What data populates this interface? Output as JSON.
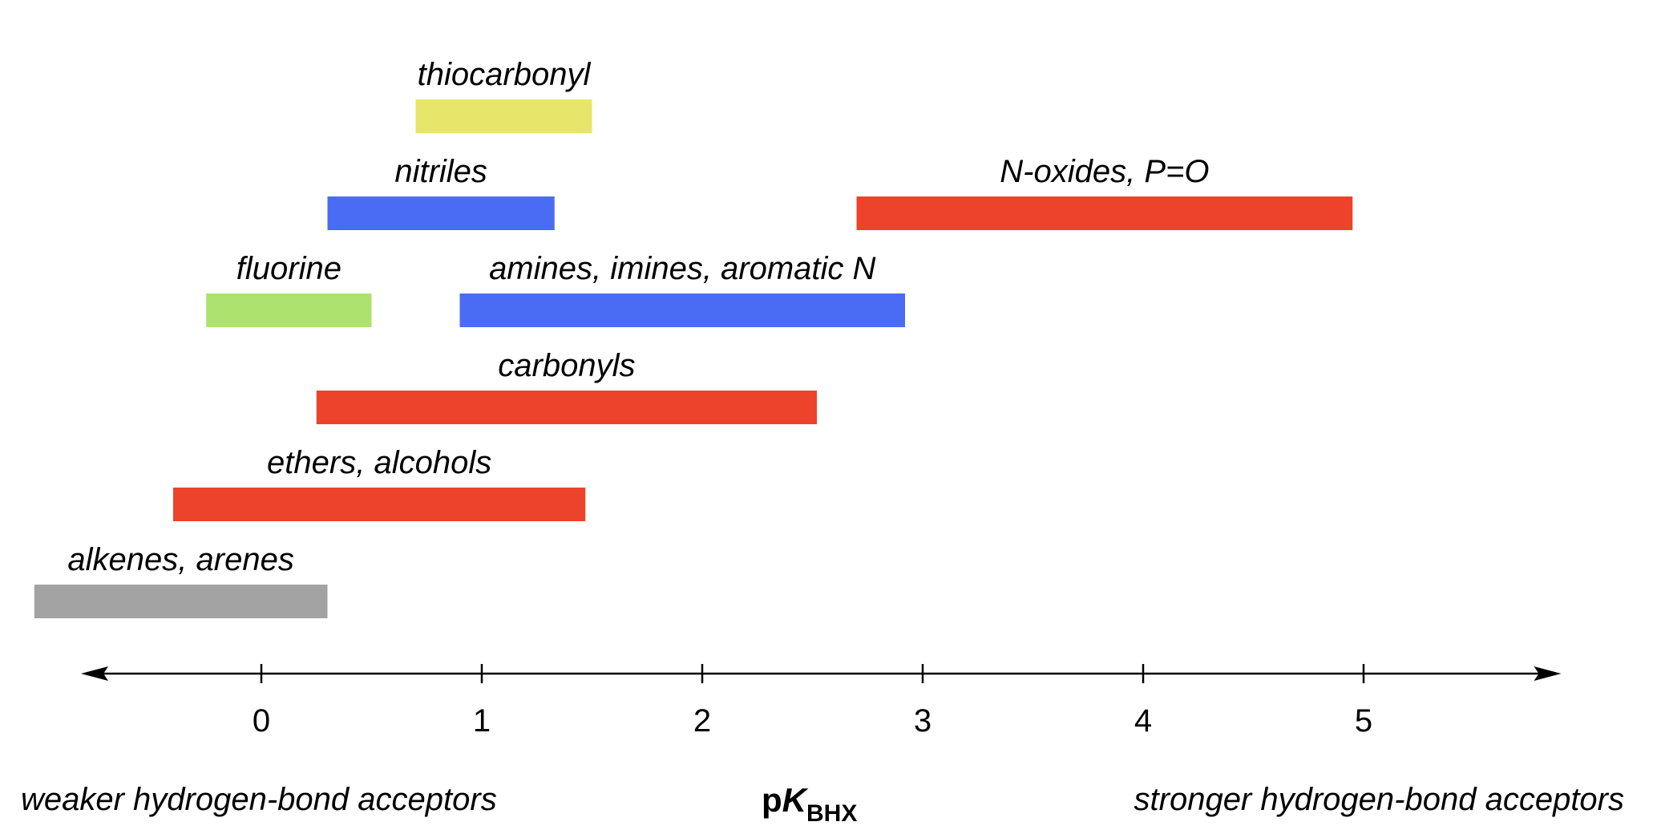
{
  "chart_data": {
    "type": "bar",
    "orientation": "horizontal-range",
    "xlabel": {
      "prefix": "p",
      "symbol": "K",
      "subscript": "BHX"
    },
    "xlim": [
      -1.0,
      5.9
    ],
    "xticks": [
      0,
      1,
      2,
      3,
      4,
      5
    ],
    "axis_arrows": "both",
    "grid": false,
    "annotations": {
      "left": "weaker hydrogen-bond acceptors",
      "right": "stronger hydrogen-bond acceptors"
    },
    "series": [
      {
        "name": "thiocarbonyl",
        "range": [
          0.7,
          1.5
        ],
        "color": "#e8e66a",
        "row": 0
      },
      {
        "name": "nitriles",
        "range": [
          0.3,
          1.33
        ],
        "color": "#4a6cf4",
        "row": 1
      },
      {
        "name": "N-oxides, P=O",
        "range": [
          2.7,
          4.95
        ],
        "color": "#ee432b",
        "row": 1
      },
      {
        "name": "fluorine",
        "range": [
          -0.25,
          0.5
        ],
        "color": "#ace26d",
        "row": 2
      },
      {
        "name": "amines, imines, aromatic N",
        "range": [
          0.9,
          2.92
        ],
        "color": "#4a6cf4",
        "row": 2
      },
      {
        "name": "carbonyls",
        "range": [
          0.25,
          2.52
        ],
        "color": "#ee432b",
        "row": 3
      },
      {
        "name": "ethers, alcohols",
        "range": [
          -0.4,
          1.47
        ],
        "color": "#ee432b",
        "row": 4
      },
      {
        "name": "alkenes, arenes",
        "range": [
          -1.03,
          0.3
        ],
        "color": "#a3a3a3",
        "row": 5
      }
    ]
  }
}
